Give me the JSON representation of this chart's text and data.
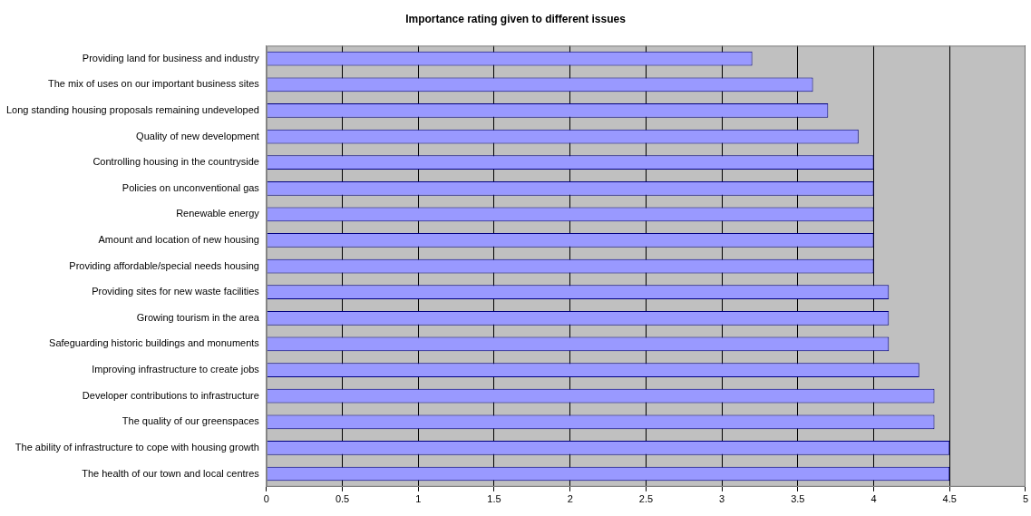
{
  "chart_data": {
    "type": "bar",
    "orientation": "horizontal",
    "title": "Importance rating given to different issues",
    "categories": [
      "Providing land for business and industry",
      "The mix of uses on our important business sites",
      "Long standing housing proposals remaining undeveloped",
      "Quality of new development",
      "Controlling housing in the countryside",
      "Policies on unconventional gas",
      "Renewable energy",
      "Amount and location of new housing",
      "Providing affordable/special needs housing",
      "Providing sites for new waste facilities",
      "Growing tourism in the area",
      "Safeguarding historic buildings and monuments",
      "Improving infrastructure to create jobs",
      "Developer contributions to infrastructure",
      "The quality of our greenspaces",
      "The ability of infrastructure to cope with housing growth",
      "The health of our town and local centres"
    ],
    "values": [
      3.2,
      3.6,
      3.7,
      3.9,
      4,
      4,
      4,
      4,
      4,
      4.1,
      4.1,
      4.1,
      4.3,
      4.4,
      4.4,
      4.5,
      4.5
    ],
    "color": "#9999ff",
    "xlim": [
      0,
      5
    ],
    "xticks": [
      0,
      0.5,
      1,
      1.5,
      2,
      2.5,
      3,
      3.5,
      4,
      4.5,
      5
    ],
    "grid": "x",
    "legend": false
  }
}
